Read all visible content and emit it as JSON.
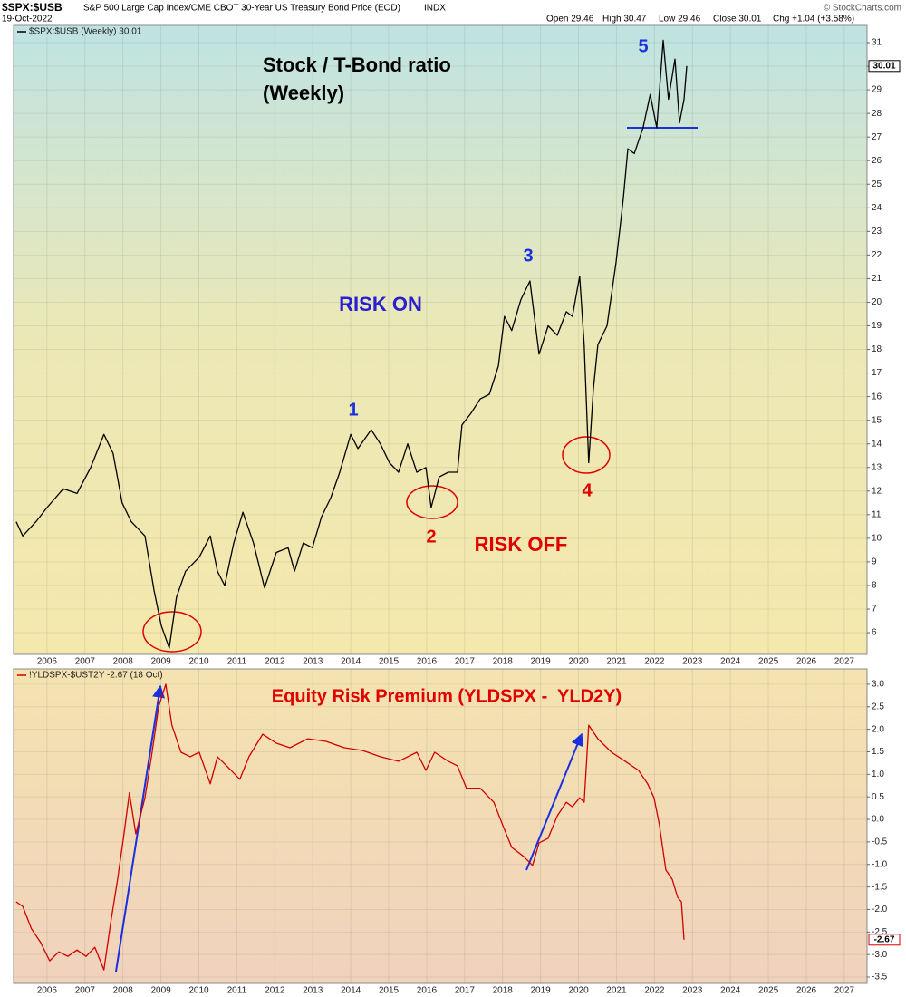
{
  "header": {
    "symbol": "$SPX:$USB",
    "description": "S&P 500 Large Cap Index/CME CBOT 30-Year US Treasury Bond Price (EOD)",
    "exchange": "INDX",
    "date": "19-Oct-2022",
    "quote": [
      "Open 29.46",
      "High 30.47",
      "Low 29.46",
      "Close 30.01",
      "Chg +1.04 (+3.58%)"
    ],
    "source": "© StockCharts.com"
  },
  "chart_data": [
    {
      "type": "line",
      "title": "Stock / T-Bond ratio",
      "subtitle": "(Weekly)",
      "annotations": [
        "RISK ON",
        "RISK OFF",
        "1",
        "2",
        "3",
        "4",
        "5"
      ],
      "x": [
        2005.19,
        2005.36,
        2005.71,
        2006.0,
        2006.43,
        2006.79,
        2007.15,
        2007.5,
        2007.74,
        2007.98,
        2008.22,
        2008.58,
        2008.82,
        2009.01,
        2009.22,
        2009.41,
        2009.65,
        2010.01,
        2010.3,
        2010.49,
        2010.68,
        2010.92,
        2011.16,
        2011.44,
        2011.73,
        2012.04,
        2012.35,
        2012.52,
        2012.75,
        2012.99,
        2013.23,
        2013.47,
        2013.71,
        2014.0,
        2014.19,
        2014.54,
        2014.78,
        2015.02,
        2015.26,
        2015.5,
        2015.74,
        2015.98,
        2016.12,
        2016.33,
        2016.57,
        2016.81,
        2016.93,
        2017.17,
        2017.41,
        2017.65,
        2017.89,
        2018.05,
        2018.24,
        2018.48,
        2018.72,
        2018.96,
        2019.2,
        2019.44,
        2019.68,
        2019.84,
        2020.03,
        2020.15,
        2020.27,
        2020.39,
        2020.51,
        2020.75,
        2020.99,
        2021.18,
        2021.3,
        2021.47,
        2021.7,
        2021.89,
        2022.06,
        2022.23,
        2022.37,
        2022.54,
        2022.66,
        2022.78,
        2022.85
      ],
      "series": [
        {
          "name": "$SPX:$USB (Weekly) 30.01",
          "color": "#000000",
          "values": [
            10.7,
            10.1,
            10.7,
            11.3,
            12.1,
            11.9,
            13.0,
            14.4,
            13.6,
            11.5,
            10.7,
            10.1,
            7.8,
            6.3,
            5.35,
            7.5,
            8.6,
            9.2,
            10.1,
            8.6,
            8.0,
            9.8,
            11.1,
            9.8,
            7.9,
            9.4,
            9.6,
            8.6,
            9.8,
            9.6,
            10.9,
            11.7,
            12.8,
            14.4,
            13.8,
            14.6,
            14.0,
            13.2,
            12.8,
            14.0,
            12.8,
            13.0,
            11.3,
            12.6,
            12.8,
            12.8,
            14.8,
            15.3,
            15.9,
            16.1,
            17.3,
            19.4,
            18.8,
            20.1,
            20.9,
            17.8,
            19.0,
            18.6,
            19.6,
            19.4,
            21.1,
            18.2,
            13.2,
            16.3,
            18.2,
            19.0,
            21.7,
            24.4,
            26.5,
            26.3,
            27.4,
            28.8,
            27.4,
            31.1,
            28.6,
            30.3,
            27.6,
            28.6,
            30.01
          ]
        }
      ],
      "xlim": [
        2005.12,
        2027.6
      ],
      "xticks": [
        2006,
        2007,
        2008,
        2009,
        2010,
        2011,
        2012,
        2013,
        2014,
        2015,
        2016,
        2017,
        2018,
        2019,
        2020,
        2021,
        2022,
        2023,
        2024,
        2025,
        2026,
        2027
      ],
      "ylim": [
        5.08,
        31.73
      ],
      "yticks": [
        6,
        7,
        8,
        9,
        10,
        11,
        12,
        13,
        14,
        15,
        16,
        17,
        18,
        19,
        20,
        21,
        22,
        23,
        24,
        25,
        26,
        27,
        28,
        29,
        30,
        31
      ],
      "grid": true
    },
    {
      "type": "line",
      "title": "Equity Risk Premium (YLDSPX -  YLD2Y)",
      "x": [
        2005.19,
        2005.36,
        2005.59,
        2005.83,
        2006.07,
        2006.31,
        2006.55,
        2006.79,
        2007.03,
        2007.26,
        2007.5,
        2007.67,
        2007.86,
        2008.03,
        2008.17,
        2008.34,
        2008.58,
        2008.77,
        2008.94,
        2009.13,
        2009.29,
        2009.53,
        2009.77,
        2010.01,
        2010.3,
        2010.49,
        2010.73,
        2011.08,
        2011.32,
        2011.68,
        2012.04,
        2012.4,
        2012.87,
        2013.35,
        2013.83,
        2014.31,
        2014.78,
        2015.26,
        2015.74,
        2015.98,
        2016.21,
        2016.57,
        2016.81,
        2017.05,
        2017.41,
        2017.77,
        2018.0,
        2018.24,
        2018.55,
        2018.79,
        2018.96,
        2019.2,
        2019.44,
        2019.68,
        2019.84,
        2020.03,
        2020.15,
        2020.27,
        2020.51,
        2020.87,
        2021.23,
        2021.58,
        2021.82,
        2021.99,
        2022.13,
        2022.3,
        2022.47,
        2022.61,
        2022.71,
        2022.78
      ],
      "series": [
        {
          "name": "!YLDSPX-$UST2Y -2.67 (18 Oct)",
          "color": "#d00000",
          "values": [
            -1.83,
            -1.93,
            -2.43,
            -2.73,
            -3.14,
            -2.94,
            -3.04,
            -2.9,
            -3.04,
            -2.84,
            -3.34,
            -2.33,
            -1.33,
            -0.32,
            0.59,
            -0.32,
            0.48,
            1.49,
            2.5,
            3.0,
            2.09,
            1.49,
            1.39,
            1.49,
            0.79,
            1.39,
            1.19,
            0.89,
            1.39,
            1.89,
            1.69,
            1.59,
            1.79,
            1.73,
            1.59,
            1.53,
            1.39,
            1.29,
            1.49,
            1.09,
            1.49,
            1.29,
            1.19,
            0.69,
            0.69,
            0.38,
            -0.12,
            -0.62,
            -0.82,
            -1.02,
            -0.52,
            -0.42,
            0.08,
            0.38,
            0.28,
            0.48,
            0.38,
            2.09,
            1.79,
            1.49,
            1.29,
            1.09,
            0.79,
            0.48,
            -0.12,
            -1.12,
            -1.33,
            -1.73,
            -1.83,
            -2.67
          ]
        }
      ],
      "xlim": [
        2005.12,
        2027.6
      ],
      "xticks": [
        2006,
        2007,
        2008,
        2009,
        2010,
        2011,
        2012,
        2013,
        2014,
        2015,
        2016,
        2017,
        2018,
        2019,
        2020,
        2021,
        2022,
        2023,
        2024,
        2025,
        2026,
        2027
      ],
      "ylim": [
        -3.64,
        3.34
      ],
      "yticks": [
        {
          "value": -3.5,
          "label": "-3.5"
        },
        {
          "value": -3,
          "label": "-3.0"
        },
        -2.5,
        {
          "value": -2,
          "label": "-2.0"
        },
        -1.5,
        {
          "value": -1,
          "label": "-1.0"
        },
        -0.5,
        {
          "value": 0,
          "label": "0.0"
        },
        0.5,
        {
          "value": 1,
          "label": "1.0"
        },
        1.5,
        {
          "value": 2,
          "label": "2.0"
        },
        2.5,
        {
          "value": 3,
          "label": "3.0"
        }
      ],
      "grid": true
    }
  ]
}
